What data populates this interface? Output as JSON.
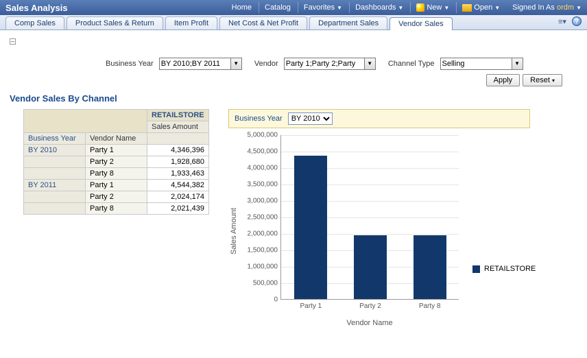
{
  "topbar": {
    "title": "Sales Analysis",
    "nav": {
      "home": "Home",
      "catalog": "Catalog",
      "favorites": "Favorites",
      "dashboards": "Dashboards",
      "new": "New",
      "open": "Open"
    },
    "signed_in_prefix": "Signed In As ",
    "user": "ordm"
  },
  "tabs": [
    "Comp Sales",
    "Product Sales & Return",
    "Item Profit",
    "Net Cost & Net Profit",
    "Department Sales",
    "Vendor Sales"
  ],
  "active_tab_index": 5,
  "filters": {
    "business_year": {
      "label": "Business Year",
      "value": "BY 2010;BY 2011"
    },
    "vendor": {
      "label": "Vendor",
      "value": "Party 1;Party 2;Party"
    },
    "channel_type": {
      "label": "Channel Type",
      "value": "Selling"
    },
    "apply": "Apply",
    "reset": "Reset"
  },
  "section_title": "Vendor Sales By Channel",
  "table": {
    "store_header": "RETAILSTORE",
    "sales_amount_header": "Sales Amount",
    "col_business_year": "Business Year",
    "col_vendor_name": "Vendor Name",
    "rows": [
      {
        "year": "BY 2010",
        "vendor": "Party 1",
        "amount": "4,346,396"
      },
      {
        "year": "",
        "vendor": "Party 2",
        "amount": "1,928,680"
      },
      {
        "year": "",
        "vendor": "Party 8",
        "amount": "1,933,463"
      },
      {
        "year": "BY 2011",
        "vendor": "Party 1",
        "amount": "4,544,382"
      },
      {
        "year": "",
        "vendor": "Party 2",
        "amount": "2,024,174"
      },
      {
        "year": "",
        "vendor": "Party 8",
        "amount": "2,021,439"
      }
    ]
  },
  "chart": {
    "filter_label": "Business Year",
    "filter_value": "BY 2010",
    "type": "bar",
    "ylabel": "Sales Amount",
    "xlabel": "Vendor Name",
    "ylim": [
      0,
      5000000
    ],
    "ytick_step": 500000,
    "yticks": [
      "0",
      "500,000",
      "1,000,000",
      "1,500,000",
      "2,000,000",
      "2,500,000",
      "3,000,000",
      "3,500,000",
      "4,000,000",
      "4,500,000",
      "5,000,000"
    ],
    "categories": [
      "Party 1",
      "Party 2",
      "Party 8"
    ],
    "values": [
      4346396,
      1928680,
      1933463
    ],
    "bar_color": "#12386b",
    "grid_color": "#e5e5e5",
    "background_color": "#ffffff",
    "legend": "RETAILSTORE"
  }
}
